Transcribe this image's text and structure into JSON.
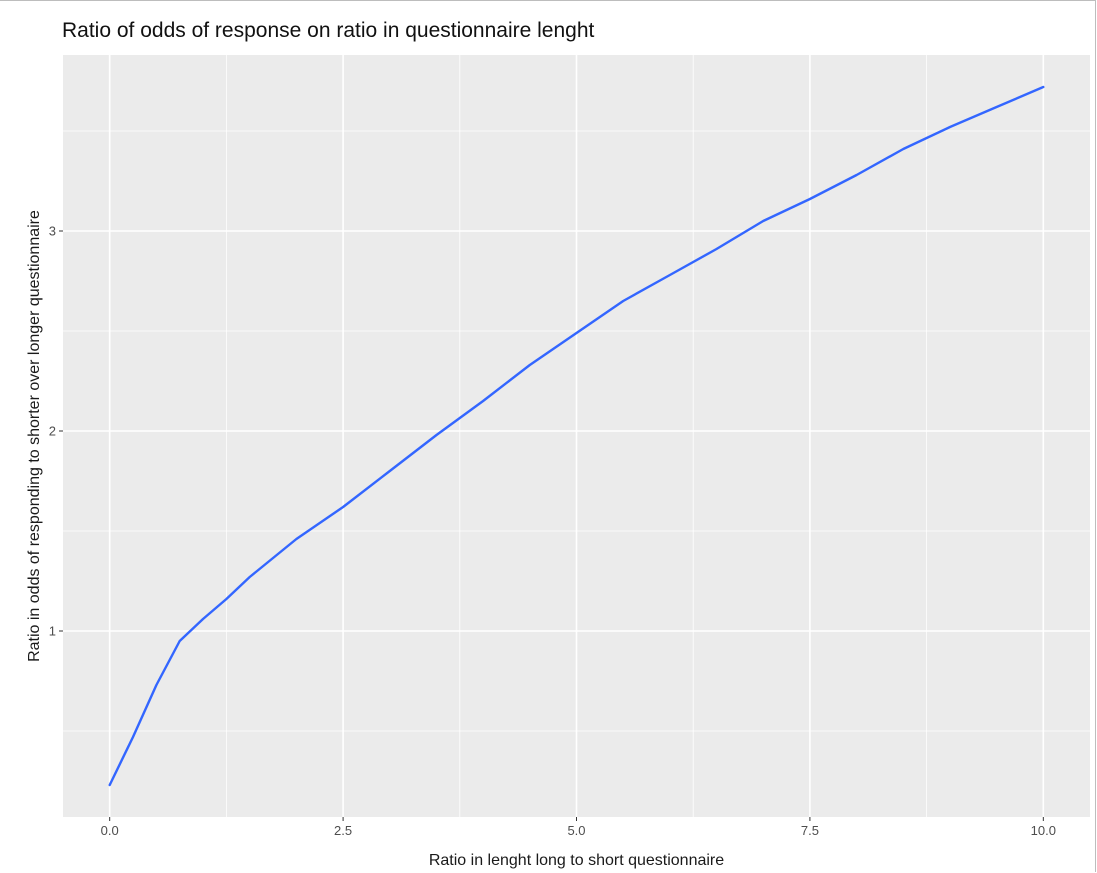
{
  "chart_data": {
    "type": "line",
    "title": "Ratio of odds of response on ratio in questionnaire lenght",
    "xlabel": "Ratio in lenght long to short questionnaire",
    "ylabel": "Ratio in odds of responding to shorter over longer questionnaire",
    "xlim": [
      -0.5,
      10.5
    ],
    "ylim": [
      0.07,
      3.88
    ],
    "x_ticks": [
      0,
      2.5,
      5,
      7.5,
      10
    ],
    "x_tick_labels": [
      "0.0",
      "2.5",
      "5.0",
      "7.5",
      "10.0"
    ],
    "y_ticks": [
      1,
      2,
      3
    ],
    "y_tick_labels": [
      "1",
      "2",
      "3"
    ],
    "x_minor": [
      1.25,
      3.75,
      6.25,
      8.75
    ],
    "y_minor": [
      0.5,
      1.5,
      2.5,
      3.5
    ],
    "grid": true,
    "background": "#ebebeb",
    "grid_color": "#ffffff",
    "series": [
      {
        "color": "#3366ff",
        "x": [
          0,
          0.25,
          0.5,
          0.75,
          1,
          1.25,
          1.5,
          2,
          2.5,
          3,
          3.5,
          4,
          4.5,
          5,
          5.5,
          6,
          6.5,
          7,
          7.5,
          8,
          8.5,
          9,
          9.5,
          10
        ],
        "y": [
          0.23,
          0.47,
          0.73,
          0.95,
          1.06,
          1.16,
          1.27,
          1.46,
          1.62,
          1.8,
          1.98,
          2.15,
          2.33,
          2.49,
          2.65,
          2.78,
          2.91,
          3.05,
          3.16,
          3.28,
          3.41,
          3.52,
          3.62,
          3.72
        ]
      }
    ]
  }
}
